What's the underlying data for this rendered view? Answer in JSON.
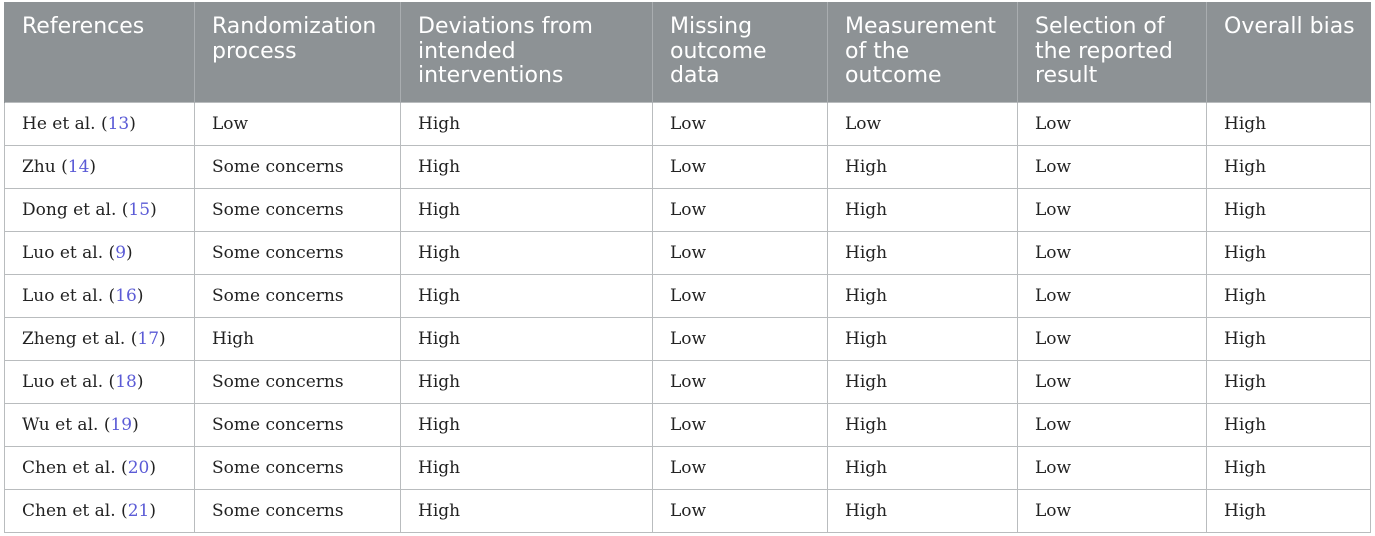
{
  "table": {
    "headers": [
      "References",
      "Randomization process",
      "Deviations from intended interventions",
      "Missing outcome data",
      "Measurement of the outcome",
      "Selection of the reported result",
      "Overall bias"
    ],
    "rows": [
      {
        "ref_name": "He et al.",
        "ref_num": "13",
        "cells": [
          "Low",
          "High",
          "Low",
          "Low",
          "Low",
          "High"
        ]
      },
      {
        "ref_name": "Zhu",
        "ref_num": "14",
        "cells": [
          "Some concerns",
          "High",
          "Low",
          "High",
          "Low",
          "High"
        ]
      },
      {
        "ref_name": "Dong et al.",
        "ref_num": "15",
        "cells": [
          "Some concerns",
          "High",
          "Low",
          "High",
          "Low",
          "High"
        ]
      },
      {
        "ref_name": "Luo et al.",
        "ref_num": "9",
        "cells": [
          "Some concerns",
          "High",
          "Low",
          "High",
          "Low",
          "High"
        ]
      },
      {
        "ref_name": "Luo et al.",
        "ref_num": "16",
        "cells": [
          "Some concerns",
          "High",
          "Low",
          "High",
          "Low",
          "High"
        ]
      },
      {
        "ref_name": "Zheng et al.",
        "ref_num": "17",
        "cells": [
          "High",
          "High",
          "Low",
          "High",
          "Low",
          "High"
        ]
      },
      {
        "ref_name": "Luo et al.",
        "ref_num": "18",
        "cells": [
          "Some concerns",
          "High",
          "Low",
          "High",
          "Low",
          "High"
        ]
      },
      {
        "ref_name": "Wu et al.",
        "ref_num": "19",
        "cells": [
          "Some concerns",
          "High",
          "Low",
          "High",
          "Low",
          "High"
        ]
      },
      {
        "ref_name": "Chen et al.",
        "ref_num": "20",
        "cells": [
          "Some concerns",
          "High",
          "Low",
          "High",
          "Low",
          "High"
        ]
      },
      {
        "ref_name": "Chen et al.",
        "ref_num": "21",
        "cells": [
          "Some concerns",
          "High",
          "Low",
          "High",
          "Low",
          "High"
        ]
      }
    ]
  }
}
